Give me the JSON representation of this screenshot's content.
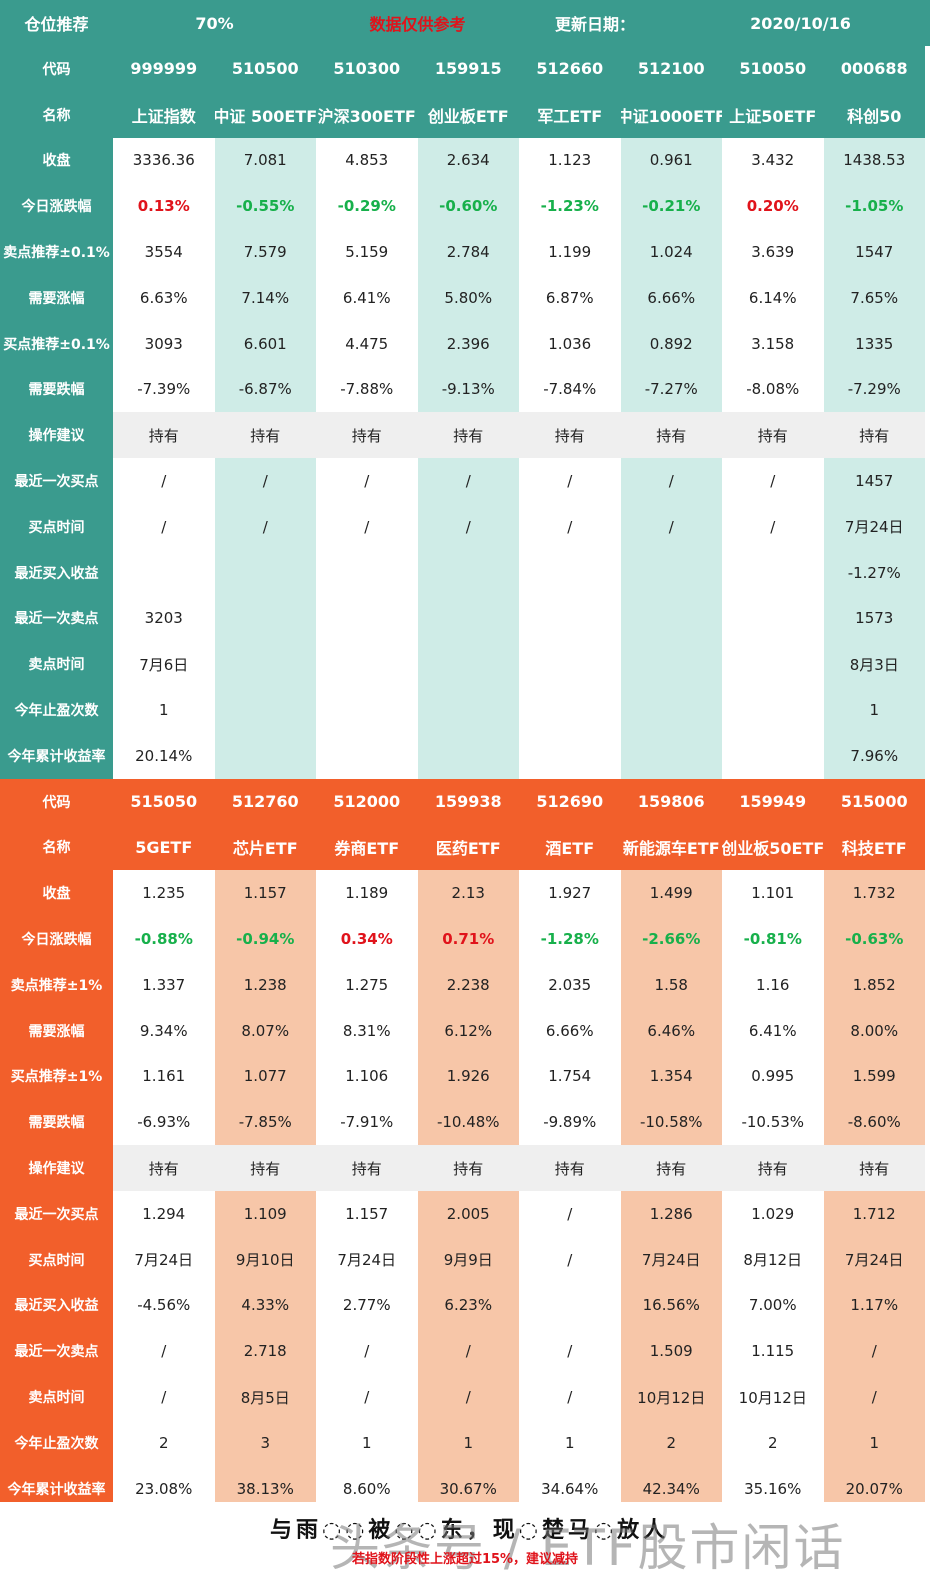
{
  "header": {
    "position_label": "仓位推荐",
    "position_value": "70%",
    "disclaimer": "数据仅供参考",
    "update_label": "更新日期：",
    "update_date": "2020/10/16"
  },
  "colors": {
    "up": "#e0131b",
    "down": "#17b04b",
    "teal": "#3a9b8e",
    "orange": "#f25f2b"
  },
  "top": {
    "labels": [
      "代码",
      "名称",
      "收盘",
      "今日涨跌幅",
      "卖点推荐±0.1%",
      "需要涨幅",
      "买点推荐±0.1%",
      "需要跌幅",
      "操作建议",
      "最近一次买点",
      "买点时间",
      "最近买入收益",
      "最近一次卖点",
      "卖点时间",
      "今年止盈次数",
      "今年累计收益率"
    ],
    "columns": [
      [
        "999999",
        "上证指数",
        "3336.36",
        "0.13%",
        "3554",
        "6.63%",
        "3093",
        "-7.39%",
        "持有",
        "/",
        "/",
        "",
        "3203",
        "7月6日",
        "1",
        "20.14%"
      ],
      [
        "510500",
        "中证 500ETF",
        "7.081",
        "-0.55%",
        "7.579",
        "7.14%",
        "6.601",
        "-6.87%",
        "持有",
        "/",
        "/",
        "",
        "",
        "",
        "",
        ""
      ],
      [
        "510300",
        "沪深300ETF",
        "4.853",
        "-0.29%",
        "5.159",
        "6.41%",
        "4.475",
        "-7.88%",
        "持有",
        "/",
        "/",
        "",
        "",
        "",
        "",
        ""
      ],
      [
        "159915",
        "创业板ETF",
        "2.634",
        "-0.60%",
        "2.784",
        "5.80%",
        "2.396",
        "-9.13%",
        "持有",
        "/",
        "/",
        "",
        "",
        "",
        "",
        ""
      ],
      [
        "512660",
        "军工ETF",
        "1.123",
        "-1.23%",
        "1.199",
        "6.87%",
        "1.036",
        "-7.84%",
        "持有",
        "/",
        "/",
        "",
        "",
        "",
        "",
        ""
      ],
      [
        "512100",
        "中证1000ETF",
        "0.961",
        "-0.21%",
        "1.024",
        "6.66%",
        "0.892",
        "-7.27%",
        "持有",
        "/",
        "/",
        "",
        "",
        "",
        "",
        ""
      ],
      [
        "510050",
        "上证50ETF",
        "3.432",
        "0.20%",
        "3.639",
        "6.14%",
        "3.158",
        "-8.08%",
        "持有",
        "/",
        "/",
        "",
        "",
        "",
        "",
        ""
      ],
      [
        "000688",
        "科创50",
        "1438.53",
        "-1.05%",
        "1547",
        "7.65%",
        "1335",
        "-7.29%",
        "持有",
        "1457",
        "7月24日",
        "-1.27%",
        "1573",
        "8月3日",
        "1",
        "7.96%"
      ]
    ]
  },
  "bottom": {
    "labels": [
      "代码",
      "名称",
      "收盘",
      "今日涨跌幅",
      "卖点推荐±1%",
      "需要涨幅",
      "买点推荐±1%",
      "需要跌幅",
      "操作建议",
      "最近一次买点",
      "买点时间",
      "最近买入收益",
      "最近一次卖点",
      "卖点时间",
      "今年止盈次数",
      "今年累计收益率"
    ],
    "columns": [
      [
        "515050",
        "5GETF",
        "1.235",
        "-0.88%",
        "1.337",
        "9.34%",
        "1.161",
        "-6.93%",
        "持有",
        "1.294",
        "7月24日",
        "-4.56%",
        "/",
        "/",
        "2",
        "23.08%"
      ],
      [
        "512760",
        "芯片ETF",
        "1.157",
        "-0.94%",
        "1.238",
        "8.07%",
        "1.077",
        "-7.85%",
        "持有",
        "1.109",
        "9月10日",
        "4.33%",
        "2.718",
        "8月5日",
        "3",
        "38.13%"
      ],
      [
        "512000",
        "券商ETF",
        "1.189",
        "0.34%",
        "1.275",
        "8.31%",
        "1.106",
        "-7.91%",
        "持有",
        "1.157",
        "7月24日",
        "2.77%",
        "/",
        "/",
        "1",
        "8.60%"
      ],
      [
        "159938",
        "医药ETF",
        "2.13",
        "0.71%",
        "2.238",
        "6.12%",
        "1.926",
        "-10.48%",
        "持有",
        "2.005",
        "9月9日",
        "6.23%",
        "/",
        "/",
        "1",
        "30.67%"
      ],
      [
        "512690",
        "酒ETF",
        "1.927",
        "-1.28%",
        "2.035",
        "6.66%",
        "1.754",
        "-9.89%",
        "持有",
        "/",
        "/",
        "",
        "/",
        "/",
        "1",
        "34.64%"
      ],
      [
        "159806",
        "新能源车ETF",
        "1.499",
        "-2.66%",
        "1.58",
        "6.46%",
        "1.354",
        "-10.58%",
        "持有",
        "1.286",
        "7月24日",
        "16.56%",
        "1.509",
        "10月12日",
        "2",
        "42.34%"
      ],
      [
        "159949",
        "创业板50ETF",
        "1.101",
        "-0.81%",
        "1.16",
        "6.41%",
        "0.995",
        "-10.53%",
        "持有",
        "1.029",
        "8月12日",
        "7.00%",
        "1.115",
        "10月12日",
        "2",
        "35.16%"
      ],
      [
        "515000",
        "科技ETF",
        "1.732",
        "-0.63%",
        "1.852",
        "8.00%",
        "1.599",
        "-8.60%",
        "持有",
        "1.712",
        "7月24日",
        "1.17%",
        "/",
        "/",
        "1",
        "20.07%"
      ]
    ]
  },
  "footer": {
    "slogan": "与雨◌◌被◌◌东，现◌楚马◌放人",
    "note": "若指数阶段性上涨超过15%，建议减持",
    "watermark": "头条号 / ETF股市闲话"
  }
}
